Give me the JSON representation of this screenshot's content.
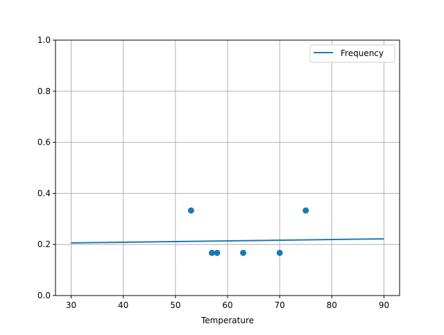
{
  "chart_data": {
    "type": "scatter",
    "title": "",
    "xlabel": "Temperature",
    "ylabel": "",
    "xlim": [
      27,
      93
    ],
    "ylim": [
      0,
      1
    ],
    "xticks": [
      30,
      40,
      50,
      60,
      70,
      80,
      90
    ],
    "yticks": [
      0.0,
      0.2,
      0.4,
      0.6,
      0.8,
      1.0
    ],
    "xtick_labels": [
      "30",
      "40",
      "50",
      "60",
      "70",
      "80",
      "90"
    ],
    "ytick_labels": [
      "0.0",
      "0.2",
      "0.4",
      "0.6",
      "0.8",
      "1.0"
    ],
    "grid": true,
    "legend_placement": "upper-right",
    "color": "#1f77b4",
    "points": {
      "x": [
        53,
        57,
        58,
        63,
        70,
        75
      ],
      "y": [
        0.333,
        0.167,
        0.167,
        0.167,
        0.167,
        0.333
      ]
    },
    "series": [
      {
        "name": "Frequency",
        "type": "line",
        "x": [
          30,
          90
        ],
        "y": [
          0.206,
          0.222
        ]
      }
    ]
  }
}
